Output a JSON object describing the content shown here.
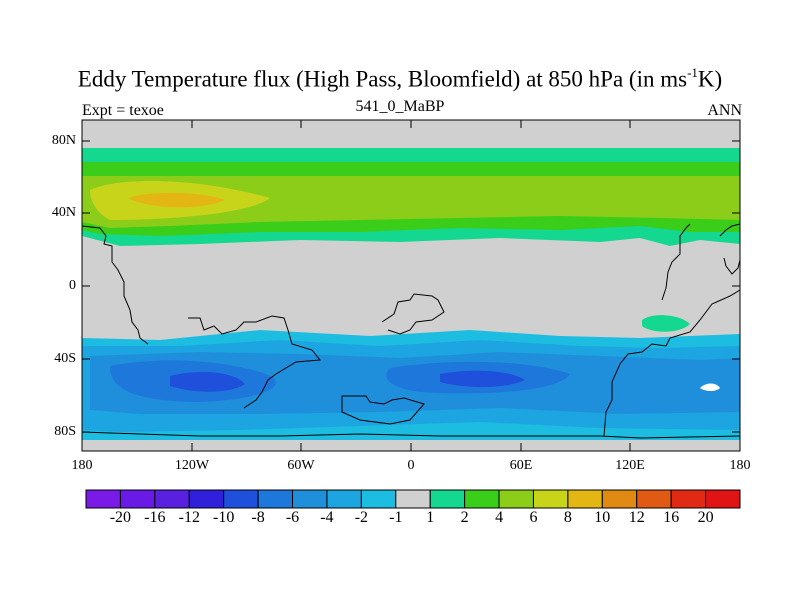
{
  "title": {
    "main": "Eddy Temperature flux (High Pass, Bloomfield) at 850 hPa (in ms",
    "superscript": "-1",
    "suffix": "K)"
  },
  "left_label": "Expt = texoe",
  "center_label": "541_0_MaBP",
  "right_label": "ANN",
  "map": {
    "lat_ticks": [
      "80N",
      "40N",
      "0",
      "40S",
      "80S"
    ],
    "lon_ticks": [
      "180",
      "120W",
      "60W",
      "0",
      "60E",
      "120E",
      "180"
    ]
  },
  "colorbar": {
    "labels": [
      "-20",
      "-16",
      "-12",
      "-10",
      "-8",
      "-6",
      "-4",
      "-2",
      "-1",
      "1",
      "2",
      "4",
      "6",
      "8",
      "10",
      "12",
      "16",
      "20"
    ],
    "colors": [
      "#7a1ae6",
      "#6a1ae6",
      "#5a20e0",
      "#3020dc",
      "#1f50dc",
      "#1e78dc",
      "#1f8fdc",
      "#1ca5e0",
      "#1cbde0",
      "#d0d0d0",
      "#15d890",
      "#3acd1a",
      "#8ccd1a",
      "#c8d41a",
      "#e4b614",
      "#e08a14",
      "#e05a14",
      "#e02a14",
      "#e01414"
    ]
  },
  "colors": {
    "land_background": "#d0d0d0",
    "coast": "#000000"
  }
}
